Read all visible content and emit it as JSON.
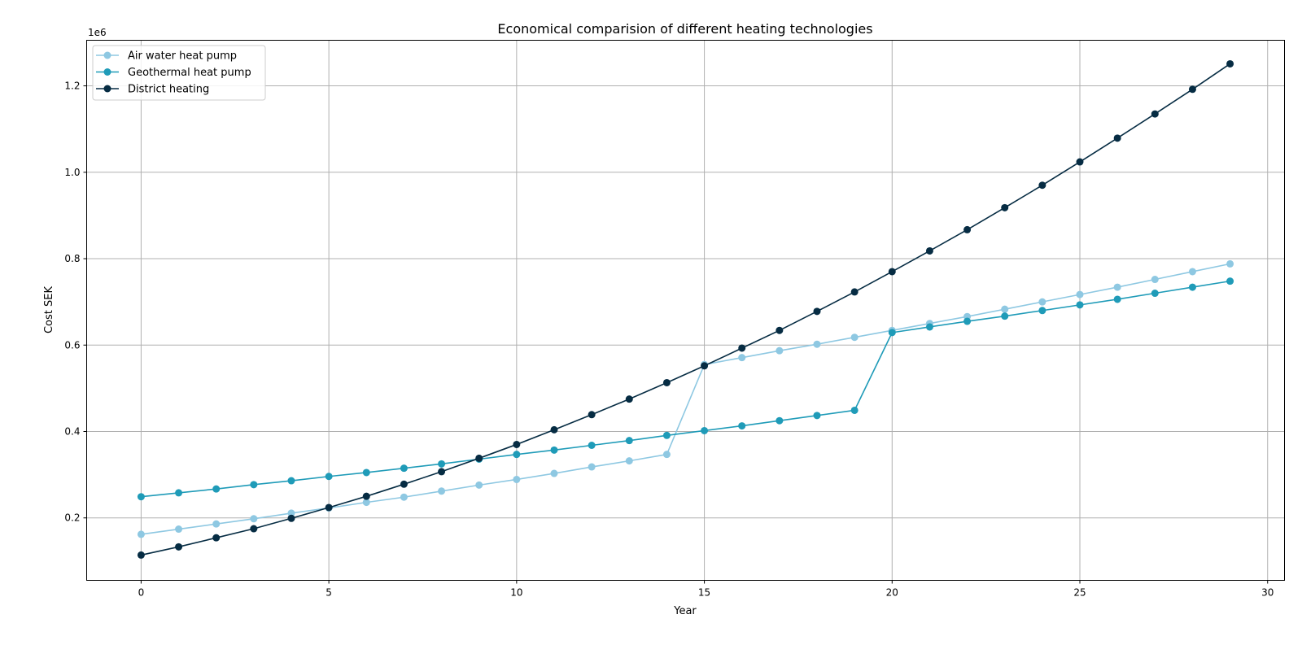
{
  "chart_data": {
    "type": "line",
    "title": "Economical comparision of different heating technologies",
    "xlabel": "Year",
    "ylabel": "Cost SEK",
    "y_offset_label": "1e6",
    "xlim": [
      -1.45,
      30.45
    ],
    "ylim": [
      0.0555,
      1.3055
    ],
    "xticks": [
      0,
      5,
      10,
      15,
      20,
      25,
      30
    ],
    "yticks": [
      0.2,
      0.4,
      0.6,
      0.8,
      1.0,
      1.2
    ],
    "xtick_labels": [
      "0",
      "5",
      "10",
      "15",
      "20",
      "25",
      "30"
    ],
    "ytick_labels": [
      "0.2",
      "0.4",
      "0.6",
      "0.8",
      "1.0",
      "1.2"
    ],
    "grid": true,
    "legend_position": "top-left",
    "x": [
      0,
      1,
      2,
      3,
      4,
      5,
      6,
      7,
      8,
      9,
      10,
      11,
      12,
      13,
      14,
      15,
      16,
      17,
      18,
      19,
      20,
      21,
      22,
      23,
      24,
      25,
      26,
      27,
      28,
      29
    ],
    "series": [
      {
        "name": "Air water heat pump",
        "color": "#8ec8e2",
        "values": [
          0.162,
          0.174,
          0.186,
          0.198,
          0.211,
          0.223,
          0.236,
          0.248,
          0.262,
          0.276,
          0.289,
          0.303,
          0.318,
          0.332,
          0.347,
          0.555,
          0.571,
          0.587,
          0.602,
          0.618,
          0.634,
          0.65,
          0.666,
          0.683,
          0.7,
          0.717,
          0.734,
          0.752,
          0.77,
          0.788
        ]
      },
      {
        "name": "Geothermal heat pump",
        "color": "#1f9bb8",
        "values": [
          0.249,
          0.258,
          0.267,
          0.277,
          0.286,
          0.296,
          0.305,
          0.315,
          0.325,
          0.336,
          0.347,
          0.357,
          0.368,
          0.379,
          0.391,
          0.402,
          0.413,
          0.425,
          0.437,
          0.449,
          0.629,
          0.642,
          0.655,
          0.667,
          0.68,
          0.693,
          0.706,
          0.72,
          0.734,
          0.748
        ]
      },
      {
        "name": "District heating",
        "color": "#062c43",
        "values": [
          0.114,
          0.133,
          0.154,
          0.175,
          0.199,
          0.224,
          0.25,
          0.278,
          0.307,
          0.338,
          0.37,
          0.404,
          0.439,
          0.475,
          0.513,
          0.552,
          0.593,
          0.634,
          0.678,
          0.723,
          0.77,
          0.818,
          0.867,
          0.918,
          0.97,
          1.024,
          1.079,
          1.135,
          1.192,
          1.251
        ]
      }
    ]
  }
}
